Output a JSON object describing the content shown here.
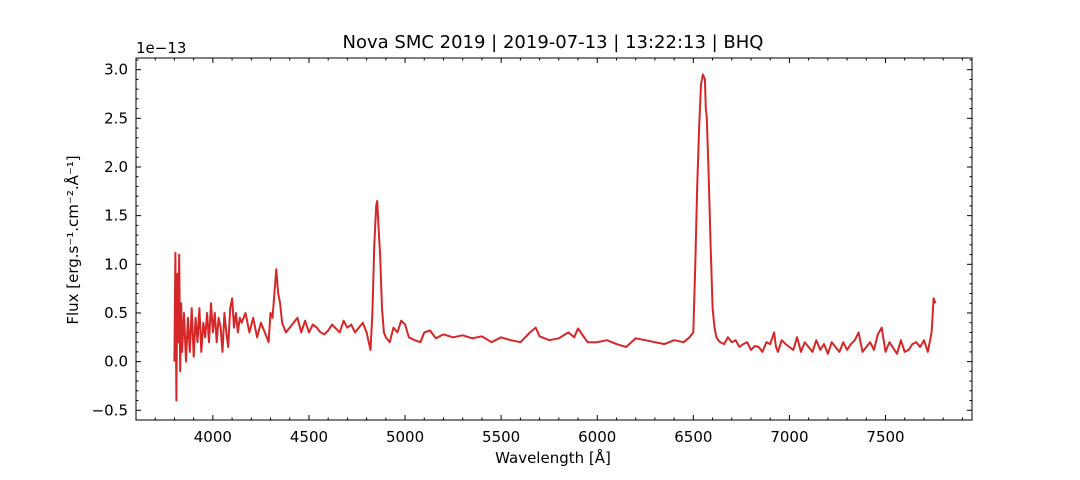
{
  "chart_data": {
    "type": "line",
    "title": "Nova SMC 2019 | 2019-07-13 | 13:22:13 | BHQ",
    "xlabel": "Wavelength [Å]",
    "ylabel": "Flux [erg.s⁻¹.cm⁻².Å⁻¹]",
    "y_scale_label": "1e−13",
    "y_multiplier": 1e-13,
    "xlim": [
      3600,
      7950
    ],
    "ylim": [
      -0.6,
      3.12
    ],
    "x_ticks": [
      4000,
      4500,
      5000,
      5500,
      6000,
      6500,
      7000,
      7500
    ],
    "x_tick_labels": [
      "4000",
      "4500",
      "5000",
      "5500",
      "6000",
      "6500",
      "7000",
      "7500"
    ],
    "y_ticks": [
      -0.5,
      0.0,
      0.5,
      1.0,
      1.5,
      2.0,
      2.5,
      3.0
    ],
    "y_tick_labels": [
      "−0.5",
      "0.0",
      "0.5",
      "1.0",
      "1.5",
      "2.0",
      "2.5",
      "3.0"
    ],
    "grid": false,
    "series_color": "#d62728",
    "series": [
      {
        "x": [
          3800,
          3805,
          3810,
          3815,
          3820,
          3825,
          3830,
          3835,
          3840,
          3850,
          3860,
          3870,
          3880,
          3890,
          3900,
          3910,
          3920,
          3930,
          3940,
          3950,
          3960,
          3970,
          3980,
          3990,
          4000,
          4010,
          4020,
          4030,
          4040,
          4050,
          4060,
          4070,
          4080,
          4090,
          4100,
          4110,
          4120,
          4130,
          4140,
          4150,
          4170,
          4190,
          4210,
          4230,
          4250,
          4270,
          4290,
          4300,
          4310,
          4320,
          4330,
          4340,
          4350,
          4360,
          4380,
          4400,
          4420,
          4440,
          4460,
          4480,
          4500,
          4520,
          4540,
          4560,
          4580,
          4600,
          4620,
          4640,
          4660,
          4680,
          4700,
          4720,
          4740,
          4760,
          4780,
          4800,
          4820,
          4830,
          4840,
          4850,
          4855,
          4860,
          4870,
          4880,
          4890,
          4900,
          4920,
          4940,
          4960,
          4980,
          5000,
          5020,
          5050,
          5080,
          5100,
          5130,
          5160,
          5200,
          5250,
          5300,
          5350,
          5400,
          5450,
          5500,
          5550,
          5600,
          5650,
          5680,
          5700,
          5750,
          5800,
          5850,
          5880,
          5900,
          5950,
          6000,
          6050,
          6100,
          6150,
          6200,
          6250,
          6300,
          6350,
          6400,
          6450,
          6480,
          6500,
          6510,
          6520,
          6530,
          6540,
          6550,
          6560,
          6565,
          6570,
          6580,
          6590,
          6600,
          6610,
          6620,
          6630,
          6640,
          6660,
          6680,
          6700,
          6720,
          6740,
          6760,
          6780,
          6800,
          6820,
          6840,
          6860,
          6880,
          6900,
          6920,
          6930,
          6940,
          6960,
          6980,
          7000,
          7020,
          7040,
          7060,
          7080,
          7100,
          7120,
          7140,
          7160,
          7180,
          7200,
          7220,
          7240,
          7260,
          7280,
          7300,
          7320,
          7340,
          7360,
          7380,
          7400,
          7420,
          7440,
          7460,
          7480,
          7500,
          7520,
          7540,
          7560,
          7580,
          7600,
          7620,
          7640,
          7660,
          7680,
          7700,
          7720,
          7740,
          7750,
          7760
        ],
        "y": [
          0.0,
          1.12,
          -0.4,
          0.9,
          0.2,
          1.1,
          -0.1,
          0.6,
          0.1,
          0.5,
          0.0,
          0.45,
          0.1,
          0.55,
          0.05,
          0.45,
          0.2,
          0.55,
          0.1,
          0.4,
          0.25,
          0.5,
          0.2,
          0.6,
          0.3,
          0.5,
          0.2,
          0.45,
          0.35,
          0.1,
          0.5,
          0.3,
          0.15,
          0.55,
          0.65,
          0.35,
          0.5,
          0.3,
          0.45,
          0.4,
          0.5,
          0.3,
          0.45,
          0.25,
          0.4,
          0.3,
          0.2,
          0.5,
          0.45,
          0.7,
          0.95,
          0.7,
          0.6,
          0.4,
          0.3,
          0.35,
          0.4,
          0.45,
          0.3,
          0.42,
          0.3,
          0.38,
          0.35,
          0.3,
          0.28,
          0.32,
          0.38,
          0.34,
          0.3,
          0.42,
          0.35,
          0.38,
          0.3,
          0.35,
          0.4,
          0.3,
          0.12,
          0.5,
          1.2,
          1.6,
          1.65,
          1.45,
          1.1,
          0.55,
          0.3,
          0.25,
          0.2,
          0.35,
          0.3,
          0.42,
          0.38,
          0.25,
          0.22,
          0.2,
          0.3,
          0.32,
          0.24,
          0.28,
          0.25,
          0.27,
          0.24,
          0.26,
          0.2,
          0.25,
          0.22,
          0.2,
          0.3,
          0.35,
          0.26,
          0.22,
          0.24,
          0.3,
          0.25,
          0.34,
          0.2,
          0.2,
          0.22,
          0.18,
          0.15,
          0.24,
          0.22,
          0.2,
          0.18,
          0.22,
          0.2,
          0.25,
          0.3,
          1.0,
          1.8,
          2.4,
          2.85,
          2.95,
          2.9,
          2.6,
          2.5,
          1.9,
          1.2,
          0.55,
          0.35,
          0.25,
          0.22,
          0.2,
          0.18,
          0.25,
          0.2,
          0.22,
          0.15,
          0.18,
          0.2,
          0.12,
          0.16,
          0.15,
          0.1,
          0.2,
          0.18,
          0.3,
          0.15,
          0.1,
          0.22,
          0.18,
          0.15,
          0.12,
          0.25,
          0.1,
          0.2,
          0.15,
          0.1,
          0.22,
          0.12,
          0.18,
          0.08,
          0.2,
          0.15,
          0.1,
          0.2,
          0.12,
          0.18,
          0.22,
          0.3,
          0.1,
          0.15,
          0.2,
          0.12,
          0.28,
          0.35,
          0.1,
          0.2,
          0.14,
          0.08,
          0.22,
          0.1,
          0.12,
          0.18,
          0.2,
          0.15,
          0.22,
          0.1,
          0.3,
          0.65,
          0.6
        ]
      }
    ]
  }
}
